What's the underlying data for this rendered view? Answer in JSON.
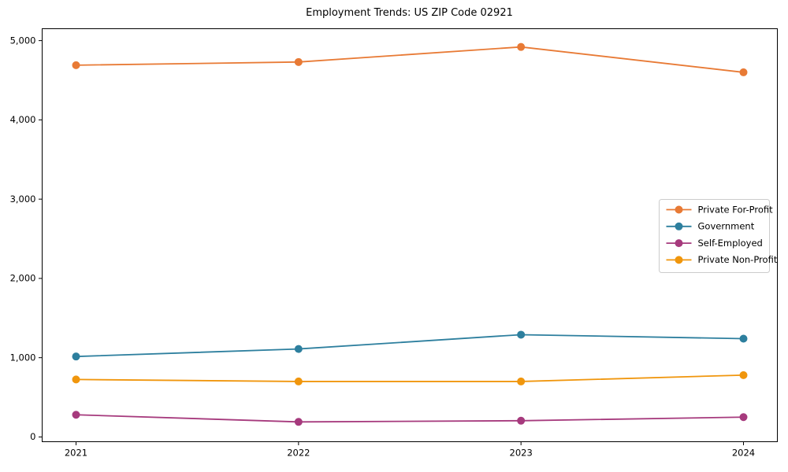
{
  "figure": {
    "background": "#ffffff"
  },
  "chart_data": {
    "type": "line",
    "title": "Employment Trends: US ZIP Code 02921",
    "xlabel": "",
    "ylabel": "",
    "categories": [
      "2021",
      "2022",
      "2023",
      "2024"
    ],
    "series": [
      {
        "name": "Private For-Profit",
        "color": "#e87a35",
        "values": [
          4690,
          4730,
          4920,
          4600
        ]
      },
      {
        "name": "Government",
        "color": "#2d7f9e",
        "values": [
          1015,
          1110,
          1290,
          1240
        ]
      },
      {
        "name": "Self-Employed",
        "color": "#a63a7d",
        "values": [
          280,
          190,
          205,
          250
        ]
      },
      {
        "name": "Private Non-Profit",
        "color": "#f0960d",
        "values": [
          725,
          700,
          700,
          780
        ]
      }
    ],
    "ylim": [
      -60,
      5150
    ],
    "yticks": [
      0,
      1000,
      2000,
      3000,
      4000,
      5000
    ],
    "ytick_labels": [
      "0",
      "1,000",
      "2,000",
      "3,000",
      "4,000",
      "5,000"
    ],
    "grid": false,
    "legend_position": "center right",
    "marker": "circle",
    "axis_color": "#000000",
    "legend_border_color": "#cccccc"
  }
}
